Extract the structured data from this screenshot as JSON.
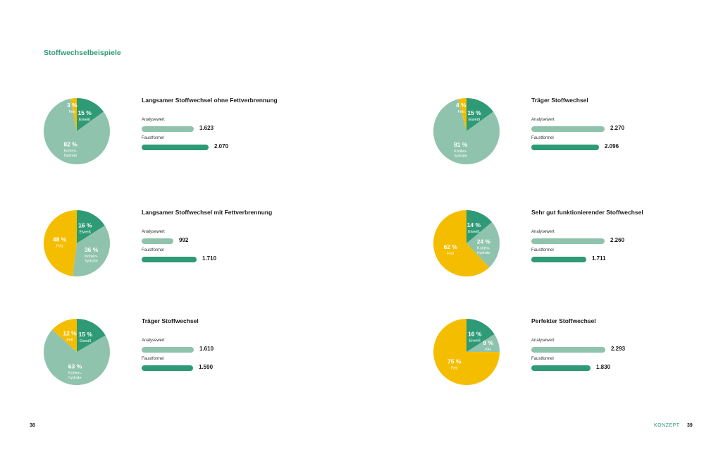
{
  "section_title": "Stoffwechselbeispiele",
  "labels": {
    "analyse": "Analysewert",
    "faust": "Faustformel"
  },
  "footer": {
    "left_page": "38",
    "section": "KONZEPT",
    "right_page": "39"
  },
  "colors": {
    "protein": "#2e9a76",
    "carbs": "#8fc3ad",
    "fat": "#f5bd00",
    "bar_analyse": "#8fc3ad",
    "bar_faust": "#2e9a76"
  },
  "chart_data": [
    {
      "type": "pie",
      "title": "Langsamer Stoffwechsel ohne Fettverbrennung",
      "slices": [
        {
          "key": "protein",
          "pct_text": "15 %",
          "name": "Eiweiß",
          "value": 15
        },
        {
          "key": "carbs",
          "pct_text": "82 %",
          "name": "Kohlen-\nhydrate",
          "value": 82
        },
        {
          "key": "fat",
          "pct_text": "3 %",
          "name": "Fett",
          "value": 3
        }
      ],
      "bars": {
        "analyse_value": 1623,
        "analyse_text": "1.623",
        "faust_value": 2070,
        "faust_text": "2.070"
      }
    },
    {
      "type": "pie",
      "title": "Träger Stoffwechsel",
      "slices": [
        {
          "key": "protein",
          "pct_text": "15 %",
          "name": "Eiweiß",
          "value": 15
        },
        {
          "key": "carbs",
          "pct_text": "81 %",
          "name": "Kohlen-\nhydrate",
          "value": 81
        },
        {
          "key": "fat",
          "pct_text": "4 %",
          "name": "Fett",
          "value": 4
        }
      ],
      "bars": {
        "analyse_value": 2270,
        "analyse_text": "2.270",
        "faust_value": 2096,
        "faust_text": "2.096"
      }
    },
    {
      "type": "pie",
      "title": "Langsamer Stoffwechsel mit Fettverbrennung",
      "slices": [
        {
          "key": "protein",
          "pct_text": "16 %",
          "name": "Eiweiß",
          "value": 16
        },
        {
          "key": "carbs",
          "pct_text": "36 %",
          "name": "Kohlen-\nhydrate",
          "value": 36
        },
        {
          "key": "fat",
          "pct_text": "48 %",
          "name": "Fett",
          "value": 48
        }
      ],
      "bars": {
        "analyse_value": 992,
        "analyse_text": "992",
        "faust_value": 1710,
        "faust_text": "1.710"
      }
    },
    {
      "type": "pie",
      "title": "Sehr gut funktionierender Stoffwechsel",
      "slices": [
        {
          "key": "protein",
          "pct_text": "14 %",
          "name": "Eiweiß",
          "value": 14
        },
        {
          "key": "carbs",
          "pct_text": "24 %",
          "name": "Kohlen-\nhydrate",
          "value": 24
        },
        {
          "key": "fat",
          "pct_text": "62 %",
          "name": "Fett",
          "value": 62
        }
      ],
      "bars": {
        "analyse_value": 2260,
        "analyse_text": "2.260",
        "faust_value": 1711,
        "faust_text": "1.711"
      }
    },
    {
      "type": "pie",
      "title": "Träger Stoffwechsel",
      "slices": [
        {
          "key": "protein",
          "pct_text": "15 %",
          "name": "Eiweiß",
          "value": 15
        },
        {
          "key": "carbs",
          "pct_text": "63 %",
          "name": "Kohlen-\nhydrate",
          "value": 63
        },
        {
          "key": "fat",
          "pct_text": "12 %",
          "name": "Fett",
          "value": 12
        }
      ],
      "bars": {
        "analyse_value": 1610,
        "analyse_text": "1.610",
        "faust_value": 1590,
        "faust_text": "1.590"
      }
    },
    {
      "type": "pie",
      "title": "Perfekter Stoffwechsel",
      "slices": [
        {
          "key": "protein",
          "pct_text": "16 %",
          "name": "Eiweiß",
          "value": 16
        },
        {
          "key": "carbs",
          "pct_text": "9 %",
          "name": "KH",
          "value": 9
        },
        {
          "key": "fat",
          "pct_text": "75 %",
          "name": "Fett",
          "value": 75
        }
      ],
      "bars": {
        "analyse_value": 2293,
        "analyse_text": "2.293",
        "faust_value": 1830,
        "faust_text": "1.830"
      }
    }
  ]
}
